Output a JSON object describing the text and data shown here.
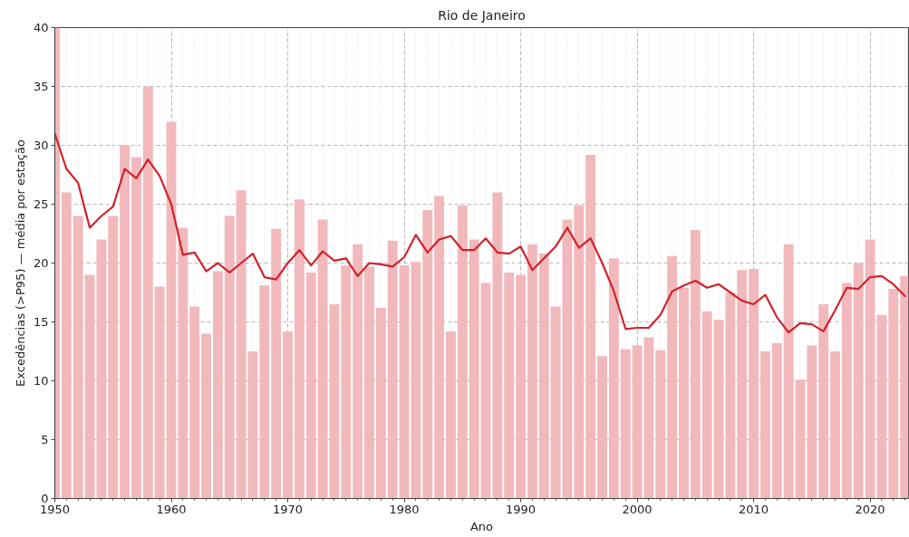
{
  "chart_data": {
    "type": "bar",
    "title": "Rio de Janeiro",
    "xlabel": "Ano",
    "ylabel": "Excedências (>P95) — média por estação",
    "x": [
      1950,
      1951,
      1952,
      1953,
      1954,
      1955,
      1956,
      1957,
      1958,
      1959,
      1960,
      1961,
      1962,
      1963,
      1964,
      1965,
      1966,
      1967,
      1968,
      1969,
      1970,
      1971,
      1972,
      1973,
      1974,
      1975,
      1976,
      1977,
      1978,
      1979,
      1980,
      1981,
      1982,
      1983,
      1984,
      1985,
      1986,
      1987,
      1988,
      1989,
      1990,
      1991,
      1992,
      1993,
      1994,
      1995,
      1996,
      1997,
      1998,
      1999,
      2000,
      2001,
      2002,
      2003,
      2004,
      2005,
      2006,
      2007,
      2008,
      2009,
      2010,
      2011,
      2012,
      2013,
      2014,
      2015,
      2016,
      2017,
      2018,
      2019,
      2020,
      2021,
      2022,
      2023
    ],
    "series": [
      {
        "color": "#f1b9bc",
        "values": [
          40,
          26,
          24,
          19.0,
          22,
          24,
          30,
          29,
          35,
          18,
          32,
          23,
          16.3,
          14,
          19.3,
          24,
          26.2,
          12.5,
          18.1,
          22.9,
          14.2,
          25.4,
          19.2,
          23.7,
          16.5,
          19.8,
          21.6,
          19.7,
          16.2,
          21.9,
          19.8,
          20.1,
          24.5,
          25.7,
          14.2,
          24.9,
          22.0,
          18.3,
          26.0,
          19.2,
          19.0,
          21.6,
          20.8,
          16.3,
          23.7,
          24.9,
          29.2,
          12.1,
          20.4,
          12.7,
          13.0,
          13.7,
          12.6,
          20.6,
          17.9,
          22.8,
          15.9,
          15.2,
          17.5,
          19.4,
          19.5,
          12.5,
          13.2,
          21.6,
          10.1,
          13.0,
          16.5,
          12.5,
          18.3,
          20.0,
          22.0,
          15.6,
          17.8,
          18.9
        ]
      },
      {
        "type": "line",
        "color": "#d0232b",
        "values": [
          31.0,
          28.0,
          26.8,
          23.0,
          24.0,
          24.8,
          28.0,
          27.2,
          28.8,
          27.4,
          25.0,
          20.7,
          20.9,
          19.3,
          20.0,
          19.2,
          20.0,
          20.8,
          18.8,
          18.6,
          20.0,
          21.1,
          19.8,
          21.0,
          20.2,
          20.4,
          18.9,
          20.0,
          19.9,
          19.7,
          20.5,
          22.4,
          20.9,
          22.0,
          22.3,
          21.1,
          21.1,
          22.1,
          20.9,
          20.8,
          21.4,
          19.4,
          20.4,
          21.4,
          23.0,
          21.3,
          22.1,
          20.0,
          17.6,
          14.4,
          14.5,
          14.5,
          15.6,
          17.6,
          18.1,
          18.5,
          17.9,
          18.2,
          17.5,
          16.8,
          16.5,
          17.3,
          15.4,
          14.1,
          14.9,
          14.8,
          14.2,
          16.0,
          17.9,
          17.8,
          18.8,
          18.9,
          18.2,
          17.2
        ]
      }
    ],
    "xlim": [
      1950,
      2023.3
    ],
    "ylim": [
      0,
      40
    ],
    "xticks": [
      1950,
      1960,
      1970,
      1980,
      1990,
      2000,
      2010,
      2020
    ],
    "yticks": [
      0,
      5,
      10,
      15,
      20,
      25,
      30,
      35,
      40
    ],
    "grid": true
  }
}
